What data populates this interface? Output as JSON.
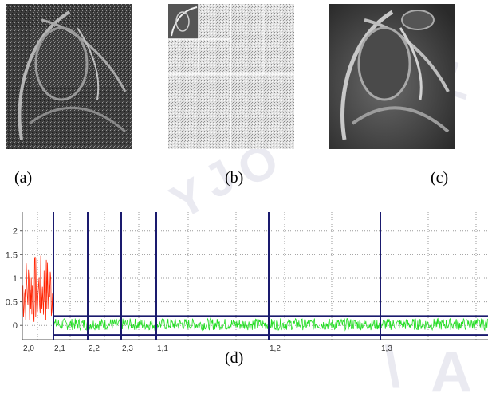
{
  "figure": {
    "labels": {
      "a": "(a)",
      "b": "(b)",
      "c": "(c)",
      "d": "(d)"
    },
    "thumbnails": {
      "a": {
        "icon": "noisy-mri-image",
        "tone": "#3a3a3a"
      },
      "b": {
        "icon": "wavelet-decomposition-image",
        "tone": "#e6e6e6"
      },
      "c": {
        "icon": "denoised-mri-image",
        "tone": "#3a3a3a"
      }
    },
    "watermark": {
      "color": "#e3e3ec"
    }
  },
  "chart_data": {
    "type": "line",
    "title": "",
    "xlabel": "",
    "ylabel": "",
    "ylim": [
      -0.3,
      2.4
    ],
    "yticks": [
      0,
      0.5,
      1,
      1.5,
      2
    ],
    "ytick_labels": [
      "0",
      "0.5",
      "1",
      "1.5",
      "2"
    ],
    "grid": true,
    "segment_labels": [
      "2,0",
      "2,1",
      "2,2",
      "2,3",
      "1,1",
      "1,2",
      "1,3"
    ],
    "segments": [
      {
        "label": "2,0",
        "amplitude_range": [
          0.0,
          1.5
        ],
        "mean": 0.75,
        "color": "#ff2200"
      },
      {
        "label": "2,1",
        "amplitude_range": [
          -0.1,
          0.15
        ],
        "mean": 0.02,
        "color": "#22dd22"
      },
      {
        "label": "2,2",
        "amplitude_range": [
          -0.1,
          0.15
        ],
        "mean": 0.02,
        "color": "#22dd22"
      },
      {
        "label": "2,3",
        "amplitude_range": [
          -0.1,
          0.15
        ],
        "mean": 0.02,
        "color": "#22dd22"
      },
      {
        "label": "1,1",
        "amplitude_range": [
          -0.1,
          0.15
        ],
        "mean": 0.02,
        "color": "#22dd22"
      },
      {
        "label": "1,2",
        "amplitude_range": [
          -0.1,
          0.15
        ],
        "mean": 0.02,
        "color": "#22dd22"
      },
      {
        "label": "1,3",
        "amplitude_range": [
          -0.1,
          0.15
        ],
        "mean": 0.02,
        "color": "#22dd22"
      }
    ],
    "threshold": 0.2,
    "colors": {
      "boundary": "#1a1a6e",
      "grid": "#9a9a9a",
      "tick_labels": "#e0a100",
      "noise": "#22dd22",
      "signal": "#ff2200"
    }
  }
}
